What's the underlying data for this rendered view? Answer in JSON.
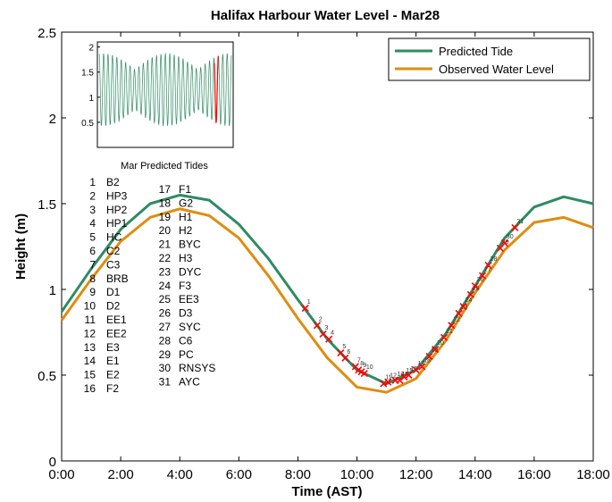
{
  "chart_data": {
    "type": "line",
    "title": "Halifax Harbour Water Level - Mar28",
    "xlabel": "Time (AST)",
    "ylabel": "Height (m)",
    "xlim": [
      0,
      18
    ],
    "ylim": [
      0,
      2.5
    ],
    "x_ticks": [
      {
        "value": 0,
        "label": "0:00"
      },
      {
        "value": 2,
        "label": "2:00"
      },
      {
        "value": 4,
        "label": "4:00"
      },
      {
        "value": 6,
        "label": "6:00"
      },
      {
        "value": 8,
        "label": "8:00"
      },
      {
        "value": 10,
        "label": "10:00"
      },
      {
        "value": 12,
        "label": "12:00"
      },
      {
        "value": 14,
        "label": "14:00"
      },
      {
        "value": 16,
        "label": "16:00"
      },
      {
        "value": 18,
        "label": "18:00"
      }
    ],
    "y_ticks": [
      {
        "value": 0,
        "label": "0"
      },
      {
        "value": 0.5,
        "label": "0.5"
      },
      {
        "value": 1,
        "label": "1"
      },
      {
        "value": 1.5,
        "label": "1.5"
      },
      {
        "value": 2,
        "label": "2"
      },
      {
        "value": 2.5,
        "label": "2.5"
      }
    ],
    "legend_position": "top-right",
    "series": [
      {
        "name": "Predicted Tide",
        "color": "#2e8b62",
        "points": [
          [
            0,
            0.87
          ],
          [
            1,
            1.12
          ],
          [
            2,
            1.35
          ],
          [
            3,
            1.5
          ],
          [
            4,
            1.55
          ],
          [
            5,
            1.52
          ],
          [
            6,
            1.38
          ],
          [
            7,
            1.18
          ],
          [
            8,
            0.94
          ],
          [
            9,
            0.71
          ],
          [
            10,
            0.53
          ],
          [
            11,
            0.45
          ],
          [
            12,
            0.53
          ],
          [
            13,
            0.74
          ],
          [
            14,
            1.02
          ],
          [
            15,
            1.3
          ],
          [
            16,
            1.48
          ],
          [
            17,
            1.54
          ],
          [
            18,
            1.5
          ]
        ]
      },
      {
        "name": "Observed Water Level",
        "color": "#e08c10",
        "points": [
          [
            0,
            0.82
          ],
          [
            1,
            1.06
          ],
          [
            2,
            1.28
          ],
          [
            3,
            1.42
          ],
          [
            4,
            1.47
          ],
          [
            5,
            1.43
          ],
          [
            6,
            1.3
          ],
          [
            7,
            1.08
          ],
          [
            8,
            0.83
          ],
          [
            9,
            0.6
          ],
          [
            10,
            0.43
          ],
          [
            11,
            0.4
          ],
          [
            12,
            0.48
          ],
          [
            13,
            0.7
          ],
          [
            14,
            0.98
          ],
          [
            15,
            1.23
          ],
          [
            16,
            1.39
          ],
          [
            17,
            1.42
          ],
          [
            18,
            1.36
          ]
        ]
      }
    ],
    "markers": {
      "color": "#ff0000",
      "points": [
        [
          8.25,
          0.89
        ],
        [
          8.65,
          0.79
        ],
        [
          8.85,
          0.74
        ],
        [
          9.05,
          0.71
        ],
        [
          9.45,
          0.63
        ],
        [
          9.6,
          0.6
        ],
        [
          9.95,
          0.55
        ],
        [
          10.05,
          0.53
        ],
        [
          10.15,
          0.52
        ],
        [
          10.25,
          0.51
        ],
        [
          10.9,
          0.45
        ],
        [
          11.05,
          0.46
        ],
        [
          11.3,
          0.47
        ],
        [
          11.45,
          0.47
        ],
        [
          11.6,
          0.49
        ],
        [
          11.75,
          0.5
        ],
        [
          12.0,
          0.53
        ],
        [
          12.2,
          0.55
        ],
        [
          12.45,
          0.61
        ],
        [
          12.65,
          0.65
        ],
        [
          12.95,
          0.72
        ],
        [
          13.2,
          0.79
        ],
        [
          13.45,
          0.86
        ],
        [
          13.6,
          0.9
        ],
        [
          13.85,
          0.97
        ],
        [
          14.0,
          1.02
        ],
        [
          14.25,
          1.08
        ],
        [
          14.45,
          1.14
        ],
        [
          14.85,
          1.24
        ],
        [
          15.0,
          1.27
        ],
        [
          15.35,
          1.36
        ]
      ]
    },
    "station_list": {
      "col1": [
        {
          "num": "1",
          "code": "B2"
        },
        {
          "num": "2",
          "code": "HP3"
        },
        {
          "num": "3",
          "code": "HP2"
        },
        {
          "num": "4",
          "code": "HP1"
        },
        {
          "num": "5",
          "code": "HC"
        },
        {
          "num": "6",
          "code": "C2"
        },
        {
          "num": "7",
          "code": "C3"
        },
        {
          "num": "8",
          "code": "BRB"
        },
        {
          "num": "9",
          "code": "D1"
        },
        {
          "num": "10",
          "code": "D2"
        },
        {
          "num": "11",
          "code": "EE1"
        },
        {
          "num": "12",
          "code": "EE2"
        },
        {
          "num": "13",
          "code": "E3"
        },
        {
          "num": "14",
          "code": "E1"
        },
        {
          "num": "15",
          "code": "E2"
        },
        {
          "num": "16",
          "code": "F2"
        }
      ],
      "col2": [
        {
          "num": "17",
          "code": "F1"
        },
        {
          "num": "18",
          "code": "G2"
        },
        {
          "num": "19",
          "code": "H1"
        },
        {
          "num": "20",
          "code": "H2"
        },
        {
          "num": "21",
          "code": "BYC"
        },
        {
          "num": "22",
          "code": "H3"
        },
        {
          "num": "23",
          "code": "DYC"
        },
        {
          "num": "24",
          "code": "F3"
        },
        {
          "num": "25",
          "code": "EE3"
        },
        {
          "num": "26",
          "code": "D3"
        },
        {
          "num": "27",
          "code": "SYC"
        },
        {
          "num": "28",
          "code": "C6"
        },
        {
          "num": "29",
          "code": "PC"
        },
        {
          "num": "30",
          "code": "RNSYS"
        },
        {
          "num": "31",
          "code": "AYC"
        }
      ]
    },
    "inset": {
      "title": "Mar Predicted Tides",
      "ylim": [
        0,
        2.1
      ],
      "y_ticks": [
        {
          "value": 0.5,
          "label": "0.5"
        },
        {
          "value": 1,
          "label": "1"
        },
        {
          "value": 1.5,
          "label": "1.5"
        },
        {
          "value": 2,
          "label": "2"
        }
      ],
      "days": 31,
      "highlight_day": 28,
      "line_color": "#2e8b62",
      "highlight_color": "#ff0000"
    }
  }
}
